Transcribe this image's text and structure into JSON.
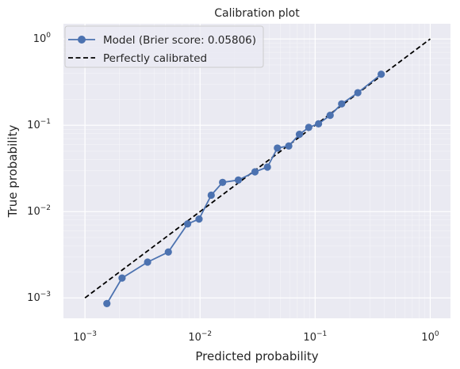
{
  "chart_data": {
    "type": "line",
    "title": "Calibration plot",
    "xlabel": "Predicted probability",
    "ylabel": "True probability",
    "xscale": "log",
    "yscale": "log",
    "xlim": [
      0.00065,
      1.5
    ],
    "ylim": [
      0.00058,
      1.5
    ],
    "xticks": [
      {
        "value": 0.001,
        "base": "10",
        "exp": "−3"
      },
      {
        "value": 0.01,
        "base": "10",
        "exp": "−2"
      },
      {
        "value": 0.1,
        "base": "10",
        "exp": "−1"
      },
      {
        "value": 1,
        "base": "10",
        "exp": "0"
      }
    ],
    "yticks": [
      {
        "value": 0.001,
        "base": "10",
        "exp": "−3"
      },
      {
        "value": 0.01,
        "base": "10",
        "exp": "−2"
      },
      {
        "value": 0.1,
        "base": "10",
        "exp": "−1"
      },
      {
        "value": 1,
        "base": "10",
        "exp": "0"
      }
    ],
    "grid": true,
    "legend_position": "top-left",
    "series": [
      {
        "name": "Model (Brier score: 0.05806)",
        "color": "#4c72b0",
        "style": "solid-with-circle-markers",
        "x": [
          0.00155,
          0.0021,
          0.0035,
          0.0053,
          0.0078,
          0.0098,
          0.0125,
          0.0157,
          0.0215,
          0.03,
          0.0385,
          0.047,
          0.059,
          0.073,
          0.088,
          0.107,
          0.135,
          0.17,
          0.235,
          0.375
        ],
        "y": [
          0.00086,
          0.0017,
          0.0026,
          0.0034,
          0.0072,
          0.0082,
          0.0155,
          0.0218,
          0.0232,
          0.0289,
          0.0328,
          0.0545,
          0.0575,
          0.0785,
          0.0945,
          0.104,
          0.1305,
          0.177,
          0.2385,
          0.39
        ]
      },
      {
        "name": "Perfectly calibrated",
        "color": "#000000",
        "style": "dashed",
        "x": [
          0.001,
          1
        ],
        "y": [
          0.001,
          1
        ]
      }
    ]
  }
}
